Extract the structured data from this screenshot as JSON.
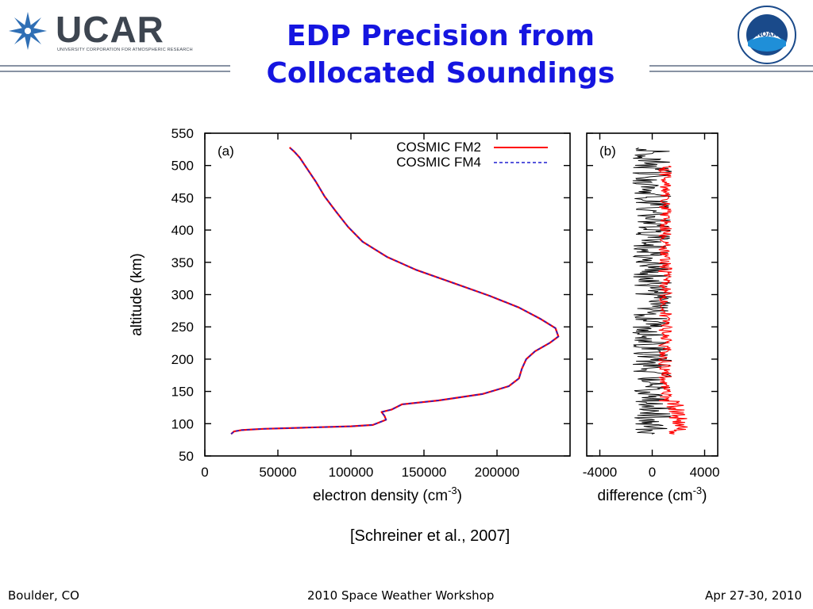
{
  "slide": {
    "title_line1": "EDP Precision from",
    "title_line2": "Collocated Soundings",
    "citation": "[Schreiner et al., 2007]"
  },
  "logos": {
    "ucar_word": "UCAR",
    "ucar_subtitle": "UNIVERSITY CORPORATION FOR ATMOSPHERIC RESEARCH",
    "noaa_word": "NOAA"
  },
  "footer": {
    "left": "Boulder, CO",
    "center": "2010 Space Weather Workshop",
    "right": "Apr 27-30, 2010"
  },
  "colors": {
    "title": "#1515e0",
    "fm2": "#ff0000",
    "fm4": "#1f1fd0",
    "diff_black": "#000000",
    "diff_red": "#ff0000"
  },
  "chart_data": [
    {
      "type": "line",
      "panel_label": "(a)",
      "xlabel": "electron density (cm",
      "xlabel_sup": "-3",
      "xlabel_tail": ")",
      "ylabel": "altitude (km)",
      "xlim": [
        0,
        250000
      ],
      "ylim": [
        50,
        550
      ],
      "xticks": [
        0,
        50000,
        100000,
        150000,
        200000
      ],
      "xtick_labels": [
        "0",
        "50000",
        "100000",
        "150000",
        "200000"
      ],
      "yticks": [
        50,
        100,
        150,
        200,
        250,
        300,
        350,
        400,
        450,
        500,
        550
      ],
      "ytick_labels": [
        "50",
        "100",
        "150",
        "200",
        "250",
        "300",
        "350",
        "400",
        "450",
        "500",
        "550"
      ],
      "legend_position": "top-right",
      "series": [
        {
          "name": "COSMIC FM2",
          "style": "solid",
          "points": [
            [
              18000,
              84
            ],
            [
              20000,
              88
            ],
            [
              25000,
              90
            ],
            [
              40000,
              92
            ],
            [
              70000,
              94
            ],
            [
              100000,
              96
            ],
            [
              115000,
              98
            ],
            [
              124000,
              106
            ],
            [
              123000,
              112
            ],
            [
              121000,
              118
            ],
            [
              128000,
              122
            ],
            [
              135000,
              130
            ],
            [
              160000,
              136
            ],
            [
              190000,
              146
            ],
            [
              208000,
              158
            ],
            [
              215000,
              170
            ],
            [
              217000,
              185
            ],
            [
              220000,
              200
            ],
            [
              226000,
              212
            ],
            [
              236000,
              225
            ],
            [
              242000,
              235
            ],
            [
              240000,
              248
            ],
            [
              230000,
              262
            ],
            [
              215000,
              280
            ],
            [
              195000,
              298
            ],
            [
              170000,
              318
            ],
            [
              145000,
              338
            ],
            [
              125000,
              358
            ],
            [
              108000,
              382
            ],
            [
              98000,
              405
            ],
            [
              90000,
              428
            ],
            [
              82000,
              452
            ],
            [
              76000,
              475
            ],
            [
              70000,
              495
            ],
            [
              65000,
              512
            ],
            [
              61000,
              522
            ],
            [
              58000,
              528
            ]
          ]
        },
        {
          "name": "COSMIC FM4",
          "style": "dashed",
          "points": [
            [
              18000,
              84
            ],
            [
              20000,
              88
            ],
            [
              25000,
              90
            ],
            [
              40000,
              92
            ],
            [
              70000,
              94
            ],
            [
              100000,
              96
            ],
            [
              115000,
              98
            ],
            [
              124000,
              106
            ],
            [
              123000,
              112
            ],
            [
              121000,
              118
            ],
            [
              128000,
              122
            ],
            [
              135000,
              130
            ],
            [
              160000,
              136
            ],
            [
              190000,
              146
            ],
            [
              208000,
              158
            ],
            [
              215000,
              170
            ],
            [
              217000,
              185
            ],
            [
              220000,
              200
            ],
            [
              226000,
              212
            ],
            [
              236000,
              225
            ],
            [
              242000,
              235
            ],
            [
              240000,
              248
            ],
            [
              230000,
              262
            ],
            [
              215000,
              280
            ],
            [
              195000,
              298
            ],
            [
              170000,
              318
            ],
            [
              145000,
              338
            ],
            [
              125000,
              358
            ],
            [
              108000,
              382
            ],
            [
              98000,
              405
            ],
            [
              90000,
              428
            ],
            [
              82000,
              452
            ],
            [
              76000,
              475
            ],
            [
              70000,
              495
            ],
            [
              65000,
              512
            ],
            [
              61000,
              522
            ],
            [
              58000,
              528
            ]
          ]
        }
      ]
    },
    {
      "type": "line",
      "panel_label": "(b)",
      "xlabel": "difference (cm",
      "xlabel_sup": "-3",
      "xlabel_tail": ")",
      "xlim": [
        -5000,
        5000
      ],
      "ylim": [
        50,
        550
      ],
      "xticks": [
        -4000,
        0,
        4000
      ],
      "xtick_labels": [
        "-4000",
        "0",
        "4000"
      ],
      "yticks": [
        50,
        100,
        150,
        200,
        250,
        300,
        350,
        400,
        450,
        500,
        550
      ],
      "series": [
        {
          "style": "black",
          "y_range": [
            84,
            528
          ],
          "center": 0,
          "amplitude": 1500
        },
        {
          "style": "red",
          "y_range": [
            84,
            500
          ],
          "center": 1000,
          "amplitude": 500,
          "lower_center": 2000,
          "lower_amplitude": 900
        }
      ]
    }
  ]
}
